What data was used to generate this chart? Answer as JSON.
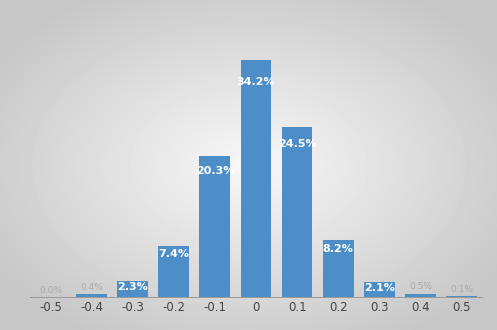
{
  "categories": [
    -0.5,
    -0.4,
    -0.3,
    -0.2,
    -0.1,
    0,
    0.1,
    0.2,
    0.3,
    0.4,
    0.5
  ],
  "values": [
    0.05,
    0.4,
    2.3,
    7.4,
    20.3,
    34.2,
    24.5,
    8.2,
    2.1,
    0.5,
    0.1
  ],
  "labels": [
    "",
    "",
    "2.3%",
    "7.4%",
    "20.3%",
    "34.2%",
    "24.5%",
    "8.2%",
    "2.1%",
    "",
    ""
  ],
  "small_labels": [
    "0.0%",
    "0.4%",
    "",
    "",
    "",
    "",
    "",
    "",
    "",
    "0.5%",
    "0.1%"
  ],
  "bar_color": "#4e8ec8",
  "label_color": "white",
  "bar_width": 0.075,
  "ylim": [
    0,
    40
  ],
  "xlim": [
    -0.55,
    0.55
  ],
  "tick_fontsize": 8.5,
  "label_fontsize": 8,
  "small_label_fontsize": 6.5
}
